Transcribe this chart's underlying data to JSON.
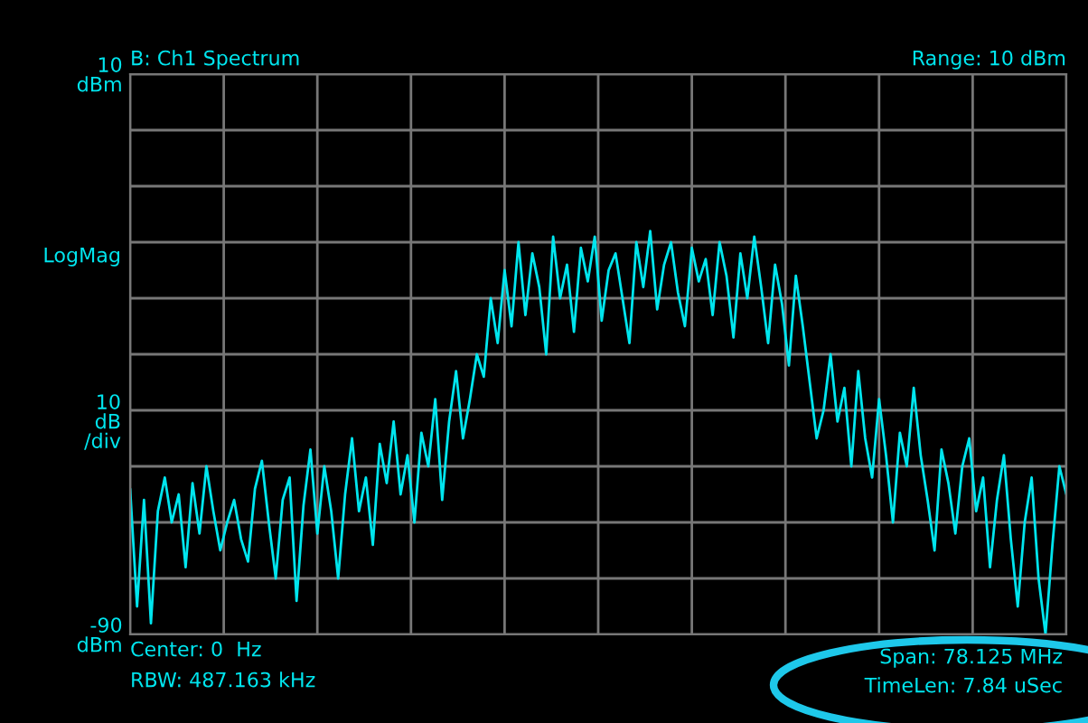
{
  "chart_data": {
    "type": "line",
    "title": "B: Ch1 Spectrum",
    "ylabel": "10\ndB\n/div",
    "annotations": [
      "Range: 10 dBm",
      "LogMag",
      "Center: 0  Hz",
      "RBW: 487.163 kHz",
      "Span: 78.125 MHz",
      "TimeLen: 7.84 uSec"
    ],
    "categories": [
      null,
      null,
      null,
      null,
      null,
      null,
      null,
      null,
      null,
      null,
      null,
      null,
      null,
      null,
      null,
      null,
      null,
      null,
      null,
      null,
      null,
      null,
      null,
      null,
      null,
      null,
      null,
      null,
      null,
      null,
      null,
      null,
      null,
      null,
      null,
      null,
      null,
      null,
      null,
      null,
      null,
      null,
      null,
      null,
      null,
      null,
      null,
      null,
      null,
      null,
      null,
      null,
      null,
      null,
      null,
      null,
      null,
      null,
      null,
      null,
      null,
      null,
      null,
      null,
      null,
      null,
      null,
      null,
      null,
      null,
      null,
      null,
      null,
      null,
      null,
      null,
      null,
      null,
      null,
      null,
      null,
      null,
      null,
      null,
      null,
      null,
      null,
      null,
      null,
      null,
      null,
      null,
      null,
      null,
      null,
      null,
      null,
      null,
      null,
      null,
      null,
      null,
      null,
      null,
      null,
      null,
      null,
      null,
      null,
      null,
      null,
      null,
      null,
      null,
      null,
      null,
      null,
      null,
      null,
      null,
      null,
      null,
      null,
      null,
      null,
      null,
      null,
      null,
      null,
      null,
      null,
      null,
      null,
      null,
      null,
      null
    ],
    "series": [
      {
        "color": "#00e5ee",
        "values": [
          -64,
          -85,
          -66,
          -88,
          -68,
          -62,
          -70,
          -65,
          -78,
          -63,
          -72,
          -60,
          -68,
          -75,
          -70,
          -66,
          -73,
          -77,
          -64,
          -59,
          -70,
          -80,
          -66,
          -62,
          -84,
          -67,
          -57,
          -72,
          -60,
          -68,
          -80,
          -65,
          -55,
          -68,
          -62,
          -74,
          -56,
          -63,
          -52,
          -65,
          -58,
          -70,
          -54,
          -60,
          -48,
          -66,
          -52,
          -43,
          -55,
          -48,
          -40,
          -44,
          -30,
          -38,
          -25,
          -35,
          -20,
          -33,
          -22,
          -28,
          -40,
          -19,
          -30,
          -24,
          -36,
          -21,
          -27,
          -19,
          -34,
          -25,
          -22,
          -30,
          -38,
          -20,
          -28,
          -18,
          -32,
          -24,
          -20,
          -29,
          -35,
          -21,
          -27,
          -23,
          -33,
          -20,
          -26,
          -37,
          -22,
          -30,
          -19,
          -28,
          -38,
          -24,
          -31,
          -42,
          -26,
          -35,
          -45,
          -55,
          -50,
          -40,
          -52,
          -46,
          -60,
          -43,
          -55,
          -62,
          -48,
          -58,
          -70,
          -54,
          -60,
          -46,
          -58,
          -66,
          -75,
          -57,
          -63,
          -72,
          -60,
          -55,
          -68,
          -62,
          -78,
          -66,
          -58,
          -73,
          -85,
          -70,
          -62,
          -80,
          -90,
          -74,
          -60,
          -65
        ]
      }
    ],
    "ylim": [
      -90,
      10
    ],
    "yticks": [
      {
        "value": -90,
        "label": "-90\ndBm"
      },
      {
        "value": -80,
        "label": null
      },
      {
        "value": -70,
        "label": null
      },
      {
        "value": -60,
        "label": null
      },
      {
        "value": -50,
        "label": null
      },
      {
        "value": -40,
        "label": null
      },
      {
        "value": -30,
        "label": null
      },
      {
        "value": -20,
        "label": null
      },
      {
        "value": -10,
        "label": null
      },
      {
        "value": 0,
        "label": null
      },
      {
        "value": 10,
        "label": "10\ndBm"
      }
    ],
    "grid": true,
    "line_style": "solid",
    "marker": "none"
  }
}
